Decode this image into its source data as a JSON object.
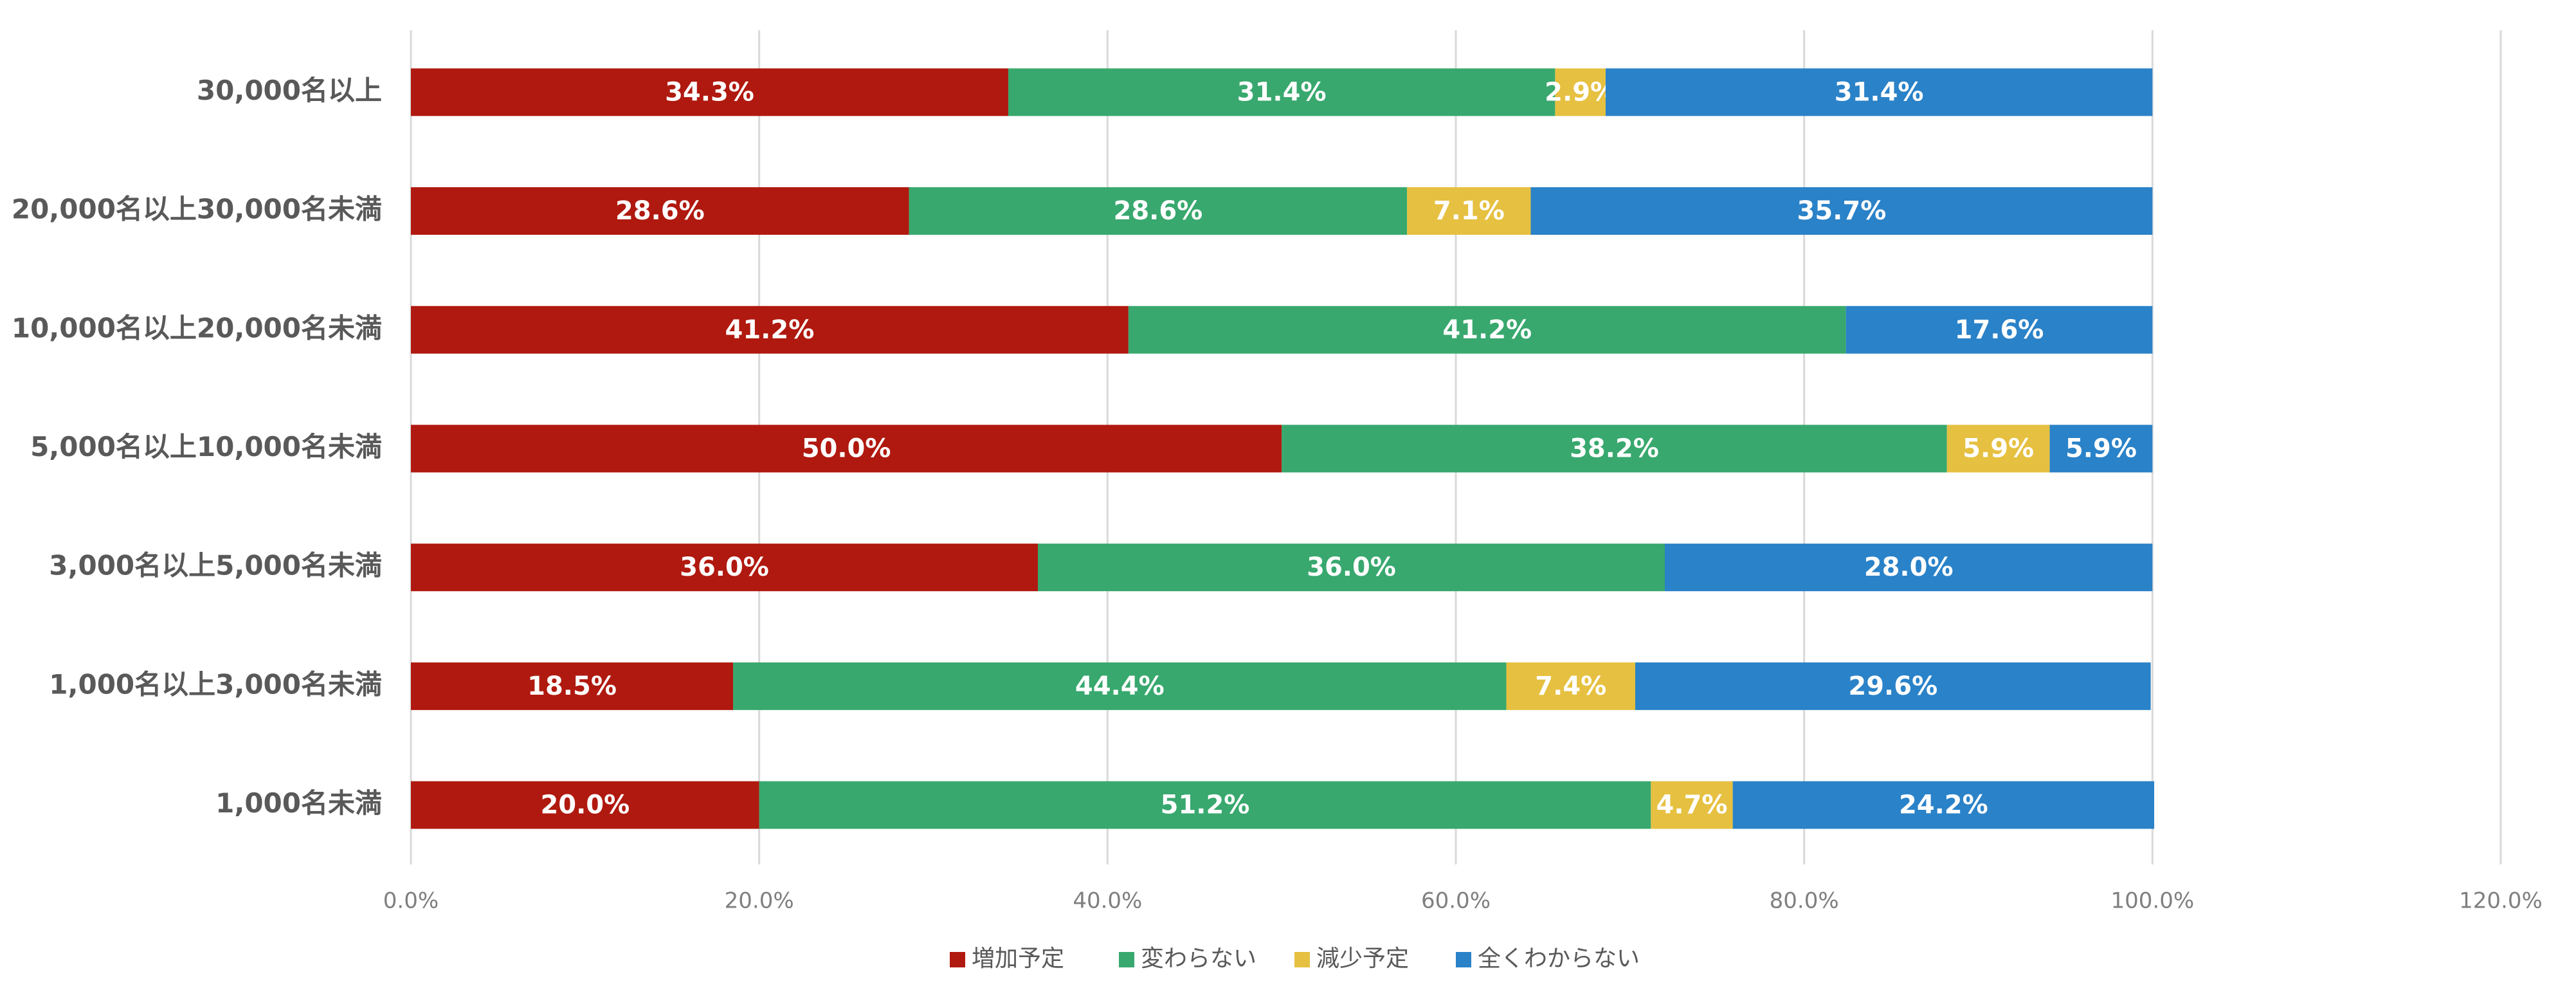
{
  "chart_data": {
    "type": "stacked-bar-horizontal",
    "categories": [
      "30,000名以上",
      "20,000名以上30,000名未満",
      "10,000名以上20,000名未満",
      "5,000名以上10,000名未満",
      "3,000名以上5,000名未満",
      "1,000名以上3,000名未満",
      "1,000名未満"
    ],
    "series": [
      {
        "name": "増加予定",
        "color": "#b0190f",
        "values": [
          34.3,
          28.6,
          41.2,
          50.0,
          36.0,
          18.5,
          20.0
        ],
        "value_labels": [
          "34.3%",
          "28.6%",
          "41.2%",
          "50.0%",
          "36.0%",
          "18.5%",
          "20.0%"
        ]
      },
      {
        "name": "変わらない",
        "color": "#38a86e",
        "values": [
          31.4,
          28.6,
          41.2,
          38.2,
          36.0,
          44.4,
          51.2
        ],
        "value_labels": [
          "31.4%",
          "28.6%",
          "41.2%",
          "38.2%",
          "36.0%",
          "44.4%",
          "51.2%"
        ]
      },
      {
        "name": "減少予定",
        "color": "#e6c040",
        "values": [
          2.9,
          7.1,
          null,
          5.9,
          null,
          7.4,
          4.7
        ],
        "value_labels": [
          "2.9%",
          "7.1%",
          null,
          "5.9%",
          null,
          "7.4%",
          "4.7%"
        ]
      },
      {
        "name": "全くわからない",
        "color": "#2a82c8",
        "values": [
          31.4,
          35.7,
          17.6,
          5.9,
          28.0,
          29.6,
          24.2
        ],
        "value_labels": [
          "31.4%",
          "35.7%",
          "17.6%",
          "5.9%",
          "28.0%",
          "29.6%",
          "24.2%"
        ]
      }
    ],
    "xlim": [
      0,
      120
    ],
    "xticks": [
      {
        "value": 0,
        "label": "0.0%"
      },
      {
        "value": 20,
        "label": "20.0%"
      },
      {
        "value": 40,
        "label": "40.0%"
      },
      {
        "value": 60,
        "label": "60.0%"
      },
      {
        "value": 80,
        "label": "80.0%"
      },
      {
        "value": 100,
        "label": "100.0%"
      },
      {
        "value": 120,
        "label": "120.0%"
      }
    ],
    "grid": true,
    "legend": "bottom"
  }
}
